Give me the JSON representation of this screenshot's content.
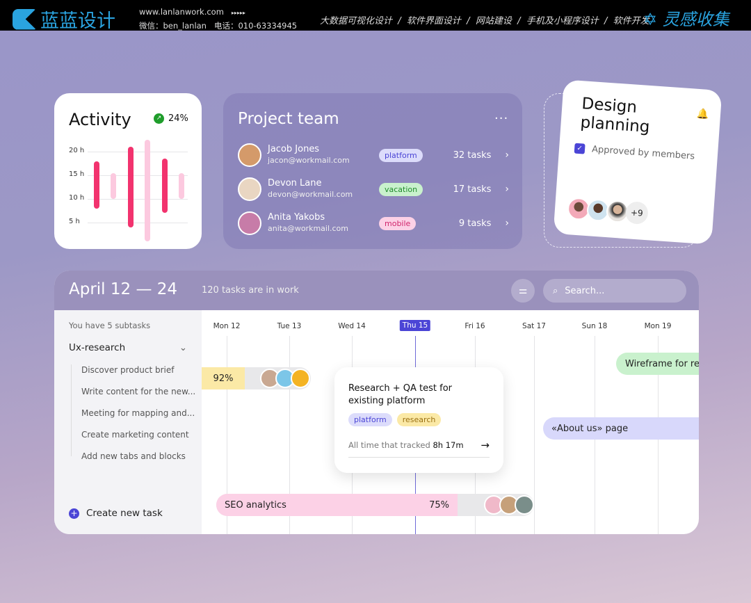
{
  "topbar": {
    "brand": "蓝蓝设计",
    "website": "www.lanlanwork.com",
    "arrows": "▸▸▸▸▸",
    "wechat": "微信：ben_lanlan",
    "phone": "电话：010-63334945",
    "services": "大数据可视化设计  /  软件界面设计  /  网站建设  /  手机及小程序设计  /  软件开发",
    "brand2": "灵感收集"
  },
  "activity": {
    "title": "Activity",
    "change": "24%",
    "chart_data": {
      "type": "bar",
      "y_ticks": [
        "20 h",
        "15 h",
        "10 h",
        "5 h"
      ],
      "bars": [
        {
          "from": 8,
          "to": 18,
          "highlight": true
        },
        {
          "from": 10,
          "to": 15.5,
          "highlight": false
        },
        {
          "from": 4,
          "to": 21,
          "highlight": true
        },
        {
          "from": 1,
          "to": 22.5,
          "highlight": false
        },
        {
          "from": 7,
          "to": 18.5,
          "highlight": true
        },
        {
          "from": 10,
          "to": 15.5,
          "highlight": false
        }
      ],
      "colors": {
        "highlight": "#f2336e",
        "muted": "#fcc9df"
      }
    }
  },
  "team": {
    "title": "Project team",
    "more": "···",
    "members": [
      {
        "name": "Jacob Jones",
        "email": "jacon@workmail.com",
        "tag": "platform",
        "tasks": "32 tasks"
      },
      {
        "name": "Devon Lane",
        "email": "devon@workmail.com",
        "tag": "vacation",
        "tasks": "17 tasks"
      },
      {
        "name": "Anita Yakobs",
        "email": "anita@workmail.com",
        "tag": "mobile",
        "tasks": "9 tasks"
      }
    ]
  },
  "design": {
    "title": "Design planning",
    "check_label": "Approved by members",
    "checked": true,
    "more_members": "+9"
  },
  "schedule": {
    "title": "April 12 — 24",
    "subtitle": "120 tasks are in work",
    "search_placeholder": "Search...",
    "subtasks_note": "You have 5 subtasks",
    "group": "Ux-research",
    "subtasks": [
      "Discover product brief",
      "Write content for the new...",
      "Meeting for mapping and...",
      "Create marketing content",
      "Add new tabs and blocks"
    ],
    "create": "Create new task",
    "days": [
      "Mon 12",
      "Tue 13",
      "Wed 14",
      "Thu 15",
      "Fri 16",
      "Sat 17",
      "Sun 18",
      "Mon 19"
    ],
    "today": "Thu 15",
    "bar1": {
      "progress": "92%"
    },
    "seo": {
      "label": "SEO analytics",
      "progress": "75%"
    },
    "wireframe": "Wireframe for reg",
    "about": "«About us» page",
    "popup": {
      "title": "Research + QA test for existing platform",
      "tags": [
        "platform",
        "research"
      ],
      "tracked_label": "All time that tracked",
      "tracked_value": "8h 17m"
    }
  }
}
